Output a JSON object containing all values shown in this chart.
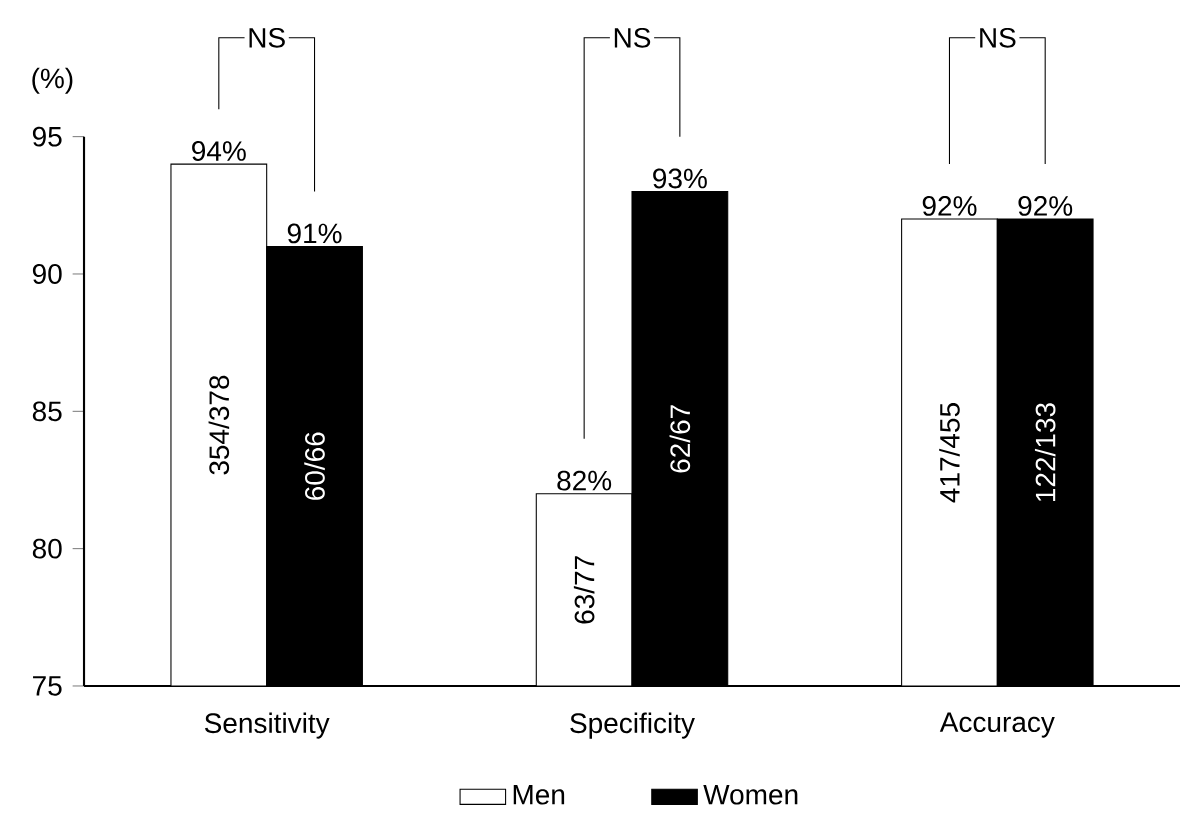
{
  "chart_data": {
    "type": "bar",
    "ylabel": "(%)",
    "categories": [
      "Sensitivity",
      "Specificity",
      "Accuracy"
    ],
    "series": [
      {
        "name": "Men",
        "color": "#ffffff",
        "values": [
          94,
          82,
          92
        ],
        "value_labels": [
          "94%",
          "82%",
          "92%"
        ]
      },
      {
        "name": "Women",
        "color": "#000000",
        "values": [
          91,
          93,
          92
        ],
        "value_labels": [
          "91%",
          "93%",
          "92%"
        ]
      }
    ],
    "ylim": [
      75,
      95
    ],
    "yticks": [
      75,
      80,
      85,
      90,
      95
    ],
    "annotations": [
      "354/378",
      "60/66",
      "63/77",
      "62/67",
      "417/455",
      "122/133",
      "NS",
      "NS",
      "NS"
    ],
    "legend": "bottom"
  }
}
